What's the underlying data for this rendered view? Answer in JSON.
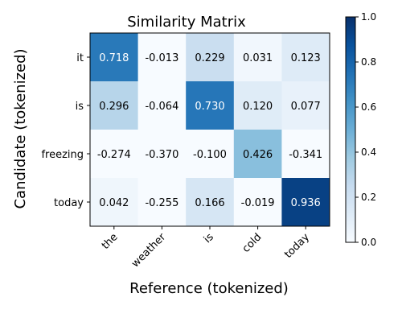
{
  "chart_data": {
    "type": "heatmap",
    "title": "Similarity Matrix",
    "xlabel": "Reference (tokenized)",
    "ylabel": "Candidate (tokenized)",
    "x_categories": [
      "the",
      "weather",
      "is",
      "cold",
      "today"
    ],
    "y_categories": [
      "it",
      "is",
      "freezing",
      "today"
    ],
    "values": [
      [
        0.718,
        -0.013,
        0.229,
        0.031,
        0.123
      ],
      [
        0.296,
        -0.064,
        0.73,
        0.12,
        0.077
      ],
      [
        -0.274,
        -0.37,
        -0.1,
        0.426,
        -0.341
      ],
      [
        0.042,
        -0.255,
        0.166,
        -0.019,
        0.936
      ]
    ],
    "value_labels": [
      [
        "0.718",
        "-0.013",
        "0.229",
        "0.031",
        "0.123"
      ],
      [
        "0.296",
        "-0.064",
        "0.730",
        "0.120",
        "0.077"
      ],
      [
        "-0.274",
        "-0.370",
        "-0.100",
        "0.426",
        "-0.341"
      ],
      [
        "0.042",
        "-0.255",
        "0.166",
        "-0.019",
        "0.936"
      ]
    ],
    "colorscale": "Blues",
    "vmin": 0.0,
    "vmax": 1.0,
    "colorbar_ticks": [
      "0.0",
      "0.2",
      "0.4",
      "0.6",
      "0.8",
      "1.0"
    ],
    "legend": "colorbar-right",
    "grid": false
  }
}
